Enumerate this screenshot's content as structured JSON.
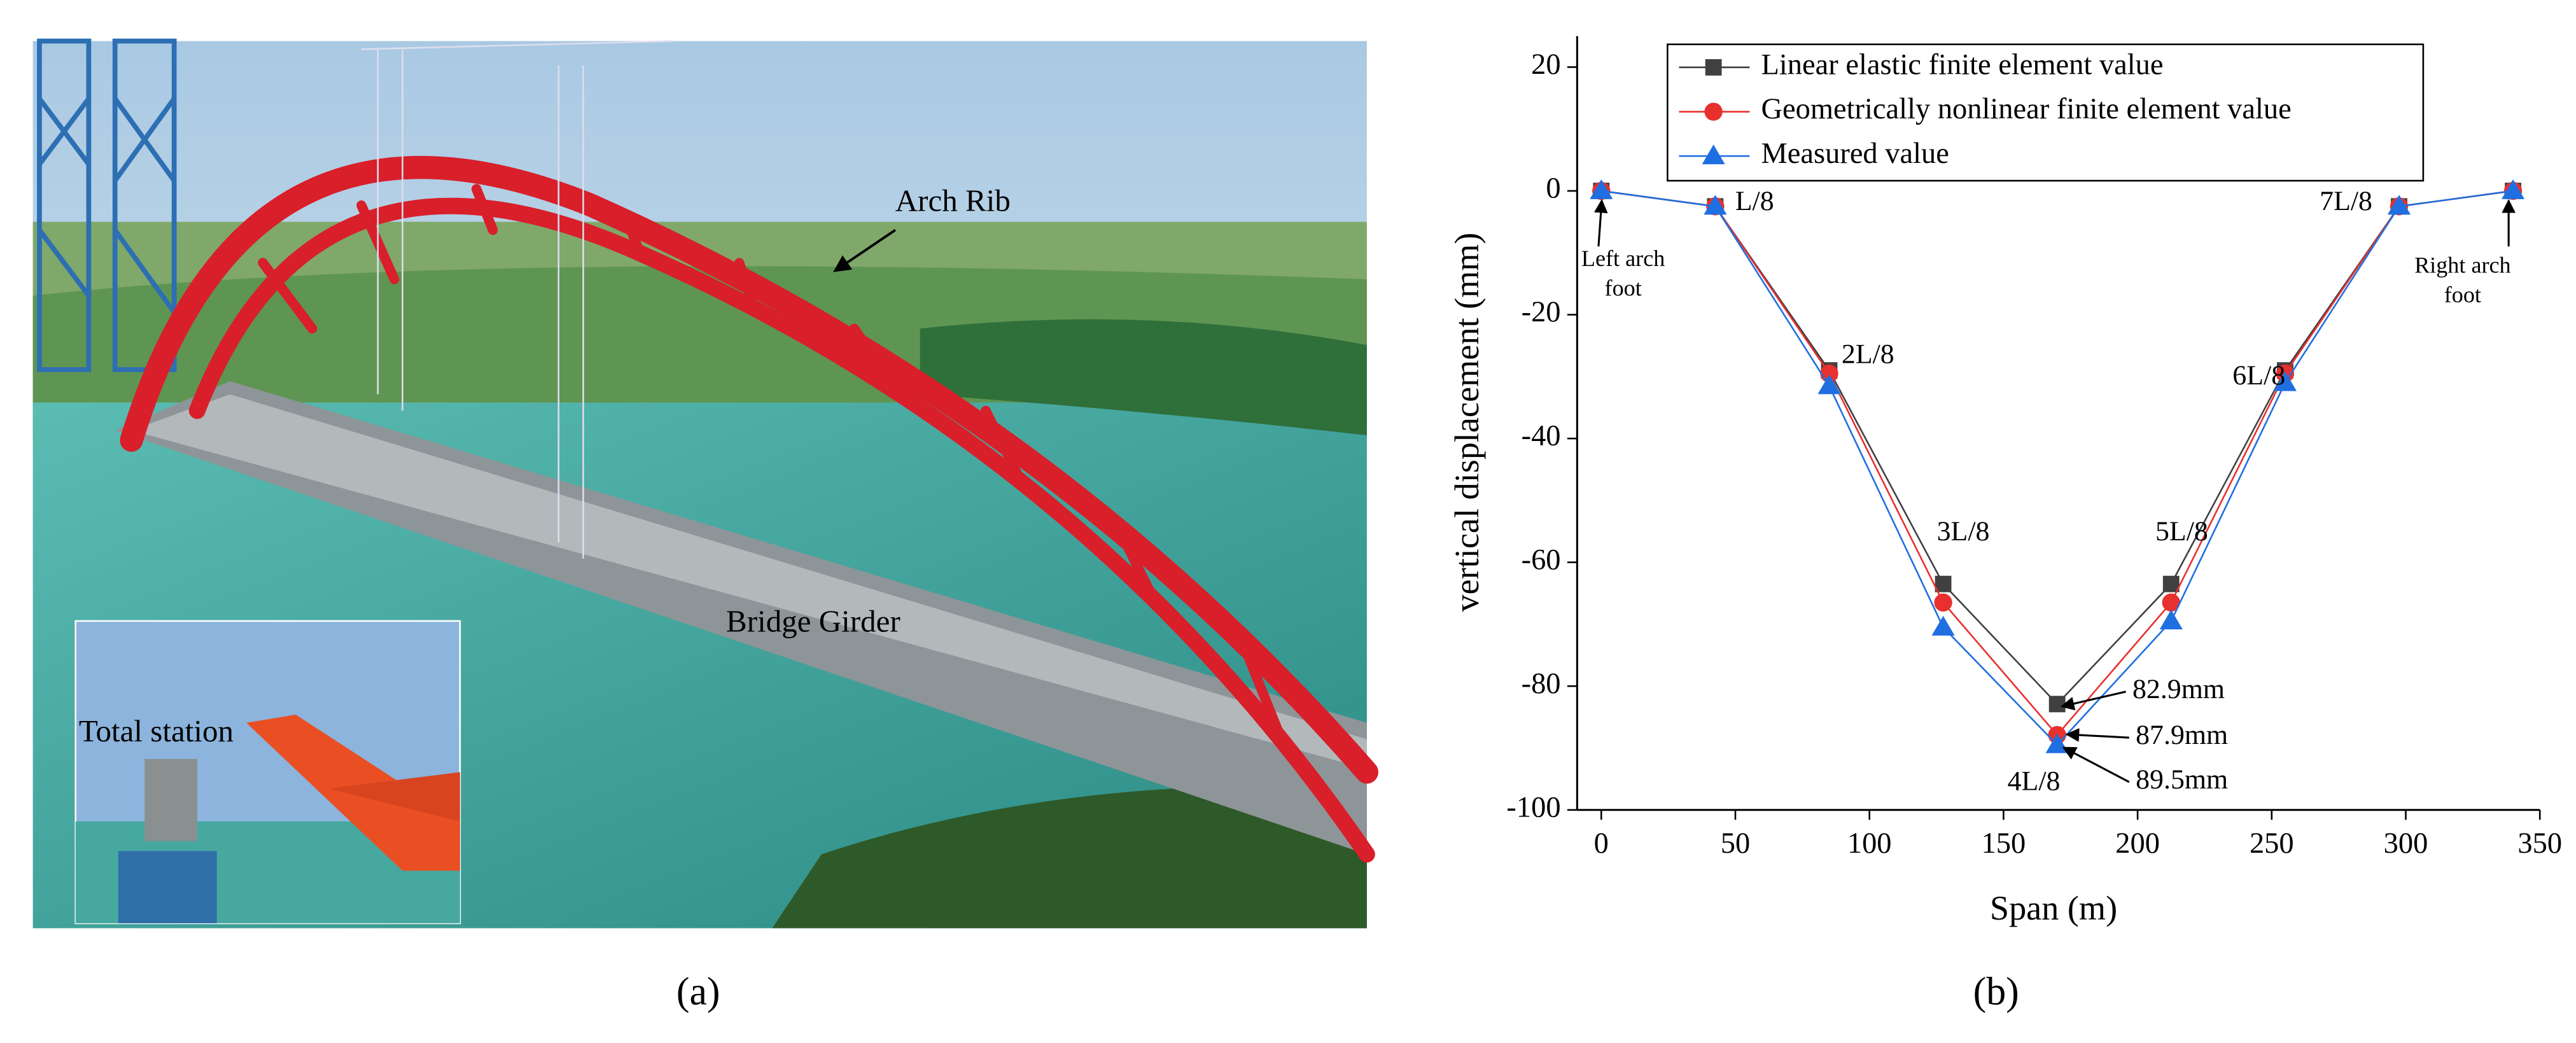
{
  "photo": {
    "labels": [
      "Arch Rib",
      "Bridge Girder",
      "Total station"
    ],
    "caption": "(a)"
  },
  "chart_data": {
    "type": "line",
    "caption": "(b)",
    "x_label": "Span (m)",
    "y_label": "vertical displacement (mm)",
    "x": [
      0,
      42.5,
      85,
      127.5,
      170,
      212.5,
      255,
      297.5,
      340
    ],
    "series": [
      {
        "name": "Linear elastic finite element value",
        "color": "#404040",
        "marker": "square",
        "values": [
          0,
          -2.5,
          -29,
          -63.5,
          -82.9,
          -63.5,
          -29,
          -2.5,
          0
        ]
      },
      {
        "name": "Geometrically nonlinear finite element value",
        "color": "#e8302e",
        "marker": "circle",
        "values": [
          0,
          -2.5,
          -29.5,
          -66.5,
          -87.9,
          -66.5,
          -29.5,
          -2.5,
          0
        ]
      },
      {
        "name": "Measured value",
        "color": "#1f6fe0",
        "marker": "triangle",
        "values": [
          0,
          -2.5,
          -31.5,
          -70.5,
          -89.5,
          -69.5,
          -31,
          -2.5,
          0
        ]
      }
    ],
    "xlim": [
      -9,
      350
    ],
    "xticks": [
      0,
      50,
      100,
      150,
      200,
      250,
      300,
      350
    ],
    "ylim": [
      -100,
      25
    ],
    "yticks": [
      -100,
      -80,
      -60,
      -40,
      -20,
      0,
      20
    ],
    "grid": false,
    "legend": "top",
    "point_labels": [
      "L/8",
      "2L/8",
      "3L/8",
      "4L/8",
      "5L/8",
      "6L/8",
      "7L/8"
    ],
    "annotations": [
      "Left arch foot",
      "Right arch foot",
      "82.9mm",
      "87.9mm",
      "89.5mm"
    ]
  }
}
